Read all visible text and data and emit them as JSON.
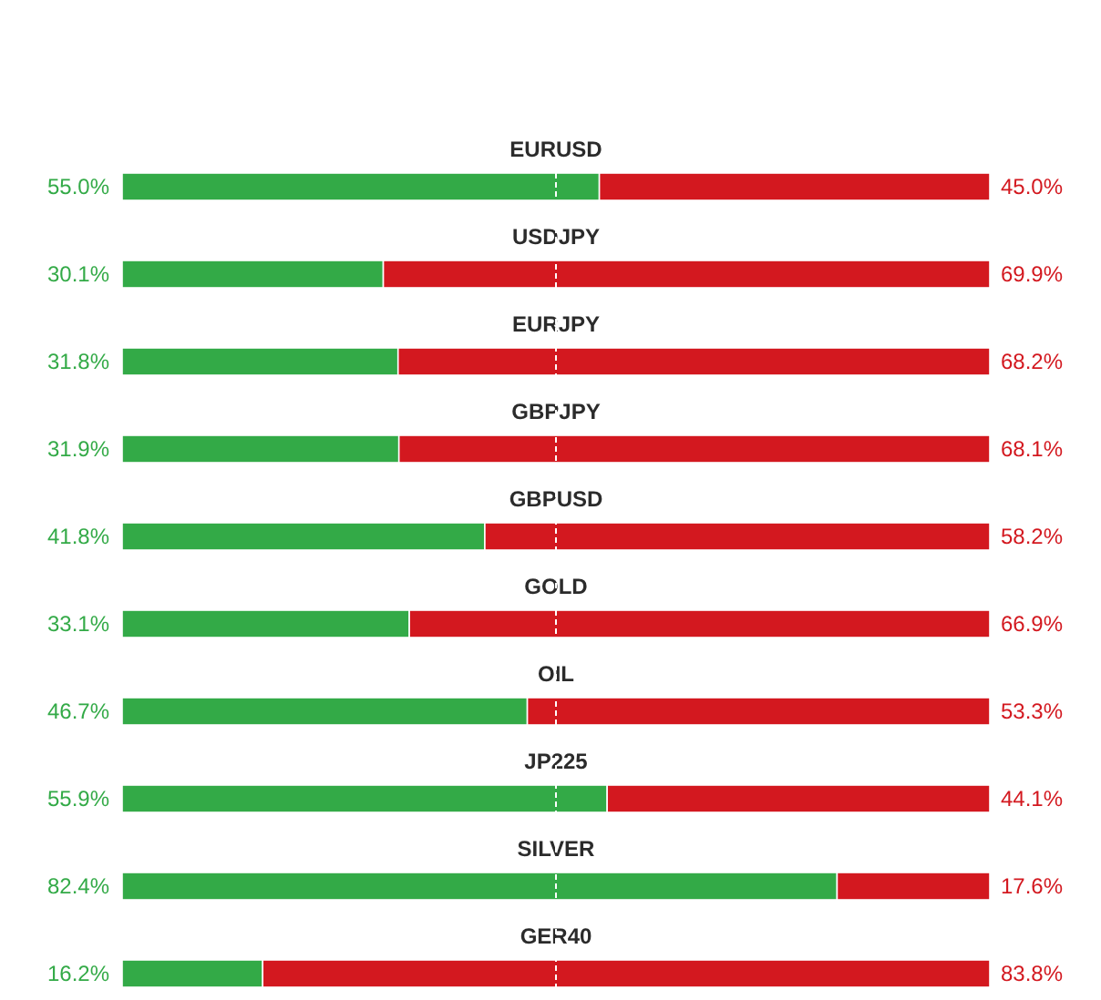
{
  "chart_data": {
    "type": "bar",
    "orientation": "horizontal",
    "stacked": true,
    "categories": [
      "EURUSD",
      "USDJPY",
      "EURJPY",
      "GBPJPY",
      "GBPUSD",
      "GOLD",
      "OIL",
      "JP225",
      "SILVER",
      "GER40"
    ],
    "xlim": [
      0,
      100
    ],
    "series": [
      {
        "color": "#33aa47",
        "values": [
          55.0,
          30.1,
          31.8,
          31.9,
          41.8,
          33.1,
          46.7,
          55.9,
          82.4,
          16.2
        ],
        "value_labels": [
          "55.0%",
          "30.1%",
          "31.8%",
          "31.9%",
          "41.8%",
          "33.1%",
          "46.7%",
          "55.9%",
          "82.4%",
          "16.2%"
        ]
      },
      {
        "color": "#d3181f",
        "values": [
          45.0,
          69.9,
          68.2,
          68.1,
          58.2,
          66.9,
          53.3,
          44.1,
          17.6,
          83.8
        ],
        "value_labels": [
          "45.0%",
          "69.9%",
          "68.2%",
          "68.1%",
          "58.2%",
          "66.9%",
          "53.3%",
          "44.1%",
          "17.6%",
          "83.8%"
        ]
      }
    ],
    "ref_lines": [
      {
        "axis": "x",
        "value": 50,
        "color": "#ffffff",
        "line_style": "dashed"
      }
    ]
  }
}
